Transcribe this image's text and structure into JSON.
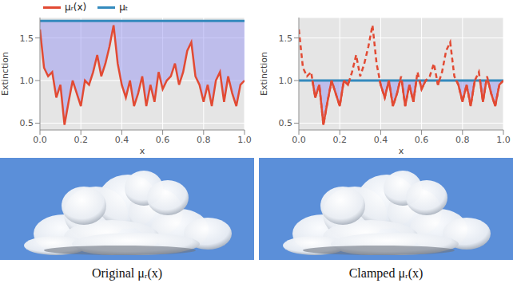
{
  "chart_data": [
    {
      "type": "line",
      "x_label": "x",
      "y_label": "Extinction",
      "x": [
        0.0,
        0.02,
        0.04,
        0.06,
        0.08,
        0.1,
        0.12,
        0.14,
        0.16,
        0.18,
        0.2,
        0.22,
        0.24,
        0.26,
        0.28,
        0.3,
        0.32,
        0.34,
        0.36,
        0.38,
        0.4,
        0.42,
        0.44,
        0.46,
        0.48,
        0.5,
        0.52,
        0.54,
        0.56,
        0.58,
        0.6,
        0.62,
        0.64,
        0.66,
        0.68,
        0.7,
        0.72,
        0.74,
        0.76,
        0.78,
        0.8,
        0.82,
        0.84,
        0.86,
        0.88,
        0.9,
        0.92,
        0.94,
        0.96,
        0.98,
        1.0
      ],
      "series": [
        {
          "name": "μᵣ(x)",
          "color": "#e24a33",
          "line_style": "solid",
          "values": [
            1.6,
            1.15,
            1.05,
            1.1,
            0.8,
            0.95,
            0.48,
            0.75,
            1.0,
            0.85,
            0.7,
            1.0,
            0.95,
            1.1,
            1.3,
            1.05,
            1.2,
            1.4,
            1.65,
            1.2,
            0.95,
            0.8,
            1.0,
            0.7,
            0.85,
            1.05,
            0.7,
            0.95,
            0.75,
            1.1,
            0.9,
            1.0,
            1.05,
            1.2,
            0.95,
            1.1,
            1.35,
            1.45,
            1.05,
            0.95,
            0.75,
            0.95,
            0.7,
            1.0,
            1.1,
            0.75,
            1.05,
            0.85,
            0.7,
            0.95,
            1.0
          ]
        },
        {
          "name": "μₜ",
          "color": "#348abd",
          "line_style": "solid",
          "values": [
            1.7,
            1.7,
            1.7,
            1.7,
            1.7,
            1.7,
            1.7,
            1.7,
            1.7,
            1.7,
            1.7,
            1.7,
            1.7,
            1.7,
            1.7,
            1.7,
            1.7,
            1.7,
            1.7,
            1.7,
            1.7,
            1.7,
            1.7,
            1.7,
            1.7,
            1.7,
            1.7,
            1.7,
            1.7,
            1.7,
            1.7,
            1.7,
            1.7,
            1.7,
            1.7,
            1.7,
            1.7,
            1.7,
            1.7,
            1.7,
            1.7,
            1.7,
            1.7,
            1.7,
            1.7,
            1.7,
            1.7,
            1.7,
            1.7,
            1.7,
            1.7
          ]
        }
      ],
      "xlim": [
        0,
        1
      ],
      "xticks": [
        {
          "value": 0,
          "label": "0.0"
        },
        {
          "value": 0.2,
          "label": "0.2"
        },
        {
          "value": 0.4,
          "label": "0.4"
        },
        {
          "value": 0.6,
          "label": "0.6"
        },
        {
          "value": 0.8,
          "label": "0.8"
        },
        {
          "value": 1,
          "label": "1.0"
        }
      ],
      "ylim": [
        0.42,
        1.74
      ],
      "yticks": [
        {
          "value": 0.5,
          "label": "0.5"
        },
        {
          "value": 1,
          "label": "1.0"
        },
        {
          "value": 1.5,
          "label": "1.5"
        }
      ],
      "grid": true,
      "legend": "top"
    },
    {
      "type": "line",
      "x_label": "x",
      "y_label": "Extinction",
      "x": [
        0.0,
        0.02,
        0.04,
        0.06,
        0.08,
        0.1,
        0.12,
        0.14,
        0.16,
        0.18,
        0.2,
        0.22,
        0.24,
        0.26,
        0.28,
        0.3,
        0.32,
        0.34,
        0.36,
        0.38,
        0.4,
        0.42,
        0.44,
        0.46,
        0.48,
        0.5,
        0.52,
        0.54,
        0.56,
        0.58,
        0.6,
        0.62,
        0.64,
        0.66,
        0.68,
        0.7,
        0.72,
        0.74,
        0.76,
        0.78,
        0.8,
        0.82,
        0.84,
        0.86,
        0.88,
        0.9,
        0.92,
        0.94,
        0.96,
        0.98,
        1.0
      ],
      "series": [
        {
          "color": "#e24a33",
          "line_style": "dashed",
          "values": [
            1.6,
            1.15,
            1.05,
            1.1,
            0.8,
            0.95,
            0.48,
            0.75,
            1.0,
            0.85,
            0.7,
            1.0,
            0.95,
            1.1,
            1.3,
            1.05,
            1.2,
            1.4,
            1.65,
            1.2,
            0.95,
            0.8,
            1.0,
            0.7,
            0.85,
            1.05,
            0.7,
            0.95,
            0.75,
            1.1,
            0.9,
            1.0,
            1.05,
            1.2,
            0.95,
            1.1,
            1.35,
            1.45,
            1.05,
            0.95,
            0.75,
            0.95,
            0.7,
            1.0,
            1.1,
            0.75,
            1.05,
            0.85,
            0.7,
            0.95,
            1.0
          ]
        },
        {
          "color": "#348abd",
          "line_style": "solid",
          "values": [
            1.0,
            1.0,
            1.0,
            1.0,
            1.0,
            1.0,
            1.0,
            1.0,
            1.0,
            1.0,
            1.0,
            1.0,
            1.0,
            1.0,
            1.0,
            1.0,
            1.0,
            1.0,
            1.0,
            1.0,
            1.0,
            1.0,
            1.0,
            1.0,
            1.0,
            1.0,
            1.0,
            1.0,
            1.0,
            1.0,
            1.0,
            1.0,
            1.0,
            1.0,
            1.0,
            1.0,
            1.0,
            1.0,
            1.0,
            1.0,
            1.0,
            1.0,
            1.0,
            1.0,
            1.0,
            1.0,
            1.0,
            1.0,
            1.0,
            1.0,
            1.0
          ]
        }
      ],
      "xlim": [
        0,
        1
      ],
      "xticks": [
        {
          "value": 0,
          "label": "0.0"
        },
        {
          "value": 0.2,
          "label": "0.2"
        },
        {
          "value": 0.4,
          "label": "0.4"
        },
        {
          "value": 0.6,
          "label": "0.6"
        },
        {
          "value": 0.8,
          "label": "0.8"
        },
        {
          "value": 1,
          "label": "1.0"
        }
      ],
      "ylim": [
        0.42,
        1.74
      ],
      "yticks": [
        {
          "value": 0.5,
          "label": "0.5"
        },
        {
          "value": 1,
          "label": "1.0"
        },
        {
          "value": 1.5,
          "label": "1.5"
        }
      ],
      "grid": true
    }
  ],
  "captions": [
    "Original μᵣ(x)",
    "Clamped μᵣ(x)"
  ]
}
